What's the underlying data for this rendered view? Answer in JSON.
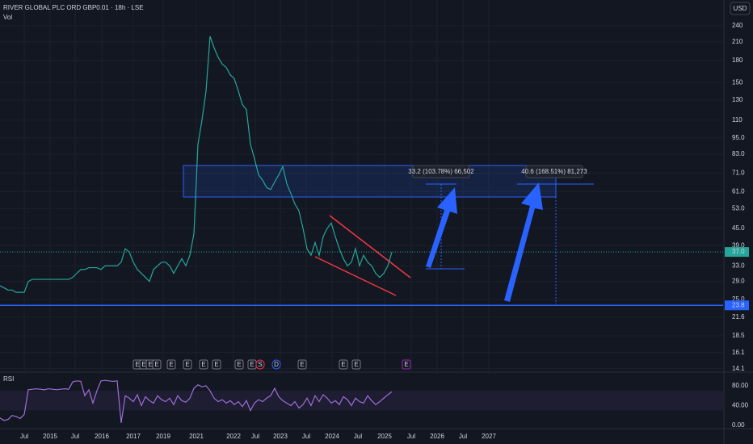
{
  "header": {
    "symbol": "RIVER GLOBAL PLC ORD GBP0.01 · 18h · LSE",
    "volume_label": "Vol",
    "currency": "USD",
    "rsi_label": "RSI"
  },
  "annotations": [
    "33.2 (103.78%) 66,502",
    "40.6 (168.51%) 81,273"
  ],
  "event_markers": [
    "E",
    "E",
    "E",
    "E",
    "E",
    "E",
    "E",
    "E",
    "E",
    "E",
    "S",
    "D",
    "E",
    "E",
    "E",
    "E"
  ],
  "chart_data": [
    {
      "type": "line",
      "log_scale": true,
      "color": "#26a69a",
      "grid": true,
      "xlim": [
        0,
        179
      ],
      "xticks": [
        {
          "value": 6,
          "label": "Jul"
        },
        {
          "value": 12.4,
          "label": "2015"
        },
        {
          "value": 18.6,
          "label": "Jul"
        },
        {
          "value": 25.2,
          "label": "2016"
        },
        {
          "value": 33,
          "label": "2017"
        },
        {
          "value": 40.4,
          "label": "2019"
        },
        {
          "value": 48.6,
          "label": "2021"
        },
        {
          "value": 57.8,
          "label": "2022"
        },
        {
          "value": 63.2,
          "label": "Jul"
        },
        {
          "value": 69.4,
          "label": "2023"
        },
        {
          "value": 75.8,
          "label": "Jul"
        },
        {
          "value": 82.2,
          "label": "2024"
        },
        {
          "value": 88.6,
          "label": "Jul"
        },
        {
          "value": 95.2,
          "label": "2025"
        },
        {
          "value": 101.8,
          "label": "Jul"
        },
        {
          "value": 108.2,
          "label": "2026"
        },
        {
          "value": 114.6,
          "label": "Jul"
        },
        {
          "value": 121,
          "label": "2027"
        }
      ],
      "ylim": [
        13.7,
        297
      ],
      "yticks": [
        240,
        210,
        180,
        150,
        130,
        110,
        {
          "value": 95,
          "label": "95.0"
        },
        {
          "value": 83,
          "label": "83.0"
        },
        {
          "value": 71,
          "label": "71.0"
        },
        {
          "value": 61,
          "label": "61.0"
        },
        {
          "value": 53,
          "label": "53.0"
        },
        {
          "value": 45,
          "label": "45.0"
        },
        {
          "value": 39,
          "label": "39.0"
        },
        {
          "value": 33,
          "label": "33.0"
        },
        {
          "value": 29,
          "label": "29.0"
        },
        {
          "value": 25,
          "label": "25.0"
        },
        {
          "value": 21.6,
          "label": "21.6"
        },
        {
          "value": 18.5,
          "label": "18.5"
        },
        {
          "value": 16.1,
          "label": "16.1"
        },
        {
          "value": 14.1,
          "label": "14.1"
        }
      ],
      "last_price": {
        "value": 37,
        "label": "37.0"
      },
      "support_level": {
        "value": 23.8,
        "label": "23.8"
      },
      "values": [
        28,
        27.5,
        27,
        27,
        26.5,
        26.5,
        26.5,
        29,
        29.5,
        29.5,
        29.5,
        29.5,
        29.5,
        29.5,
        29.5,
        29.5,
        29.5,
        29.5,
        30,
        31,
        32,
        32,
        32.5,
        32.5,
        32.5,
        32,
        33,
        33,
        33,
        33,
        34,
        38,
        37,
        34,
        32,
        31,
        30,
        29,
        32,
        33,
        34,
        34,
        33,
        31,
        33,
        35,
        33,
        36,
        43,
        90,
        110,
        140,
        220,
        200,
        185,
        175,
        170,
        160,
        155,
        140,
        125,
        120,
        90,
        80,
        70,
        67,
        63,
        62,
        66,
        70,
        75,
        65,
        60,
        55,
        52,
        45,
        38,
        36,
        40,
        36,
        42,
        45,
        47,
        42,
        38,
        35,
        33,
        34,
        38,
        33,
        36,
        34,
        33,
        31,
        30,
        31,
        33,
        37
      ]
    },
    {
      "type": "line",
      "color": "#9c6fd6",
      "ylim": [
        -5,
        106
      ],
      "yticks": [
        {
          "value": 80,
          "label": "80.00"
        },
        {
          "value": 40,
          "label": "40.00"
        },
        {
          "value": 0,
          "label": "0.00"
        }
      ],
      "values": [
        15,
        10,
        12,
        20,
        18,
        14,
        22,
        72,
        73,
        74,
        73,
        72,
        74,
        73,
        72,
        73,
        74,
        73,
        88,
        90,
        89,
        60,
        72,
        45,
        70,
        90,
        91,
        90,
        89,
        90,
        5,
        60,
        55,
        48,
        62,
        40,
        58,
        50,
        45,
        60,
        52,
        48,
        55,
        42,
        60,
        50,
        47,
        55,
        75,
        82,
        78,
        80,
        70,
        55,
        48,
        52,
        45,
        50,
        42,
        48,
        38,
        50,
        30,
        45,
        52,
        48,
        55,
        60,
        75,
        58,
        50,
        45,
        40,
        48,
        35,
        42,
        55,
        40,
        60,
        48,
        62,
        55,
        45,
        50,
        42,
        58,
        52,
        40,
        55,
        48,
        45,
        60,
        50,
        42,
        48,
        55,
        62,
        68
      ]
    }
  ]
}
